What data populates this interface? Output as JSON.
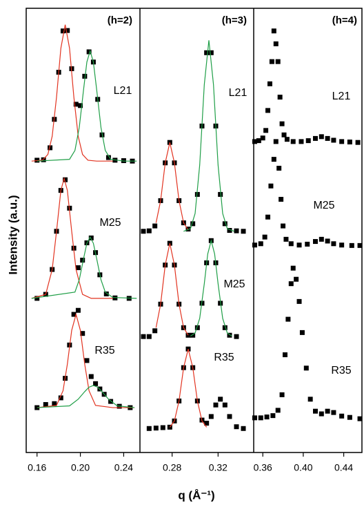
{
  "chart_data": [
    {
      "type": "scatter",
      "title": "(h=2)",
      "ylabel": "Intensity (a.u.)",
      "xlim": [
        0.15,
        0.255
      ],
      "xticks": [
        0.16,
        {
          "value": 0.2,
          "label": "0.20"
        },
        0.24
      ],
      "ylim": [
        0,
        100
      ],
      "series": [
        {
          "name": "L21",
          "style": "square",
          "color": "#000000",
          "x": [
            0.16,
            0.166,
            0.172,
            0.176,
            0.18,
            0.184,
            0.188,
            0.192,
            0.196,
            0.2,
            0.204,
            0.208,
            0.212,
            0.216,
            0.22,
            0.226,
            0.232,
            0.24,
            0.248
          ],
          "values": [
            65.8,
            65.9,
            68.6,
            75,
            85.6,
            94.9,
            95,
            86.4,
            78.4,
            78.1,
            84.7,
            90.2,
            87.9,
            79.5,
            71.5,
            66.4,
            65.8,
            65.7,
            65.6
          ]
        },
        {
          "style": "line",
          "color": "#e2321f",
          "x": [
            0.155,
            0.165,
            0.17,
            0.174,
            0.178,
            0.182,
            0.186,
            0.19,
            0.194,
            0.198,
            0.202,
            0.207,
            0.215,
            0.23
          ],
          "values": [
            65.6,
            65.8,
            67.1,
            71.2,
            80,
            91,
            96.3,
            91,
            80,
            71.2,
            67.1,
            65.8,
            65.6,
            65.6
          ]
        },
        {
          "style": "line",
          "color": "#1e9e46",
          "x": [
            0.16,
            0.19,
            0.195,
            0.199,
            0.203,
            0.206,
            0.209,
            0.212,
            0.215,
            0.219,
            0.223,
            0.228,
            0.24,
            0.252
          ],
          "values": [
            65.6,
            66,
            68,
            73.2,
            81.8,
            87.9,
            90.4,
            87.9,
            81.8,
            73.2,
            68,
            66,
            65.6,
            65.6
          ]
        },
        {
          "name": "M25",
          "style": "square",
          "color": "#000000",
          "x": [
            0.16,
            0.168,
            0.174,
            0.178,
            0.182,
            0.186,
            0.19,
            0.194,
            0.198,
            0.202,
            0.206,
            0.21,
            0.214,
            0.218,
            0.224,
            0.232,
            0.245
          ],
          "values": [
            34.7,
            35.6,
            41.2,
            49.8,
            59,
            61.4,
            55,
            46,
            41.6,
            43.3,
            47.2,
            48.3,
            45,
            40,
            35.7,
            34.8,
            34.7
          ]
        },
        {
          "style": "line",
          "color": "#e2321f",
          "x": [
            0.155,
            0.168,
            0.174,
            0.178,
            0.182,
            0.185,
            0.188,
            0.192,
            0.196,
            0.202,
            0.21,
            0.23
          ],
          "values": [
            34.7,
            35.6,
            41.2,
            49.8,
            59,
            61.7,
            59,
            49.8,
            41.2,
            35.6,
            34.7,
            34.7
          ]
        },
        {
          "style": "line",
          "color": "#1e9e46",
          "x": [
            0.155,
            0.195,
            0.199,
            0.203,
            0.206,
            0.209,
            0.212,
            0.215,
            0.219,
            0.223,
            0.23,
            0.252
          ],
          "values": [
            34.7,
            36.1,
            38.9,
            43.7,
            47.1,
            48.5,
            47.1,
            43.7,
            38.9,
            36.1,
            34.9,
            34.7
          ]
        },
        {
          "name": "R35",
          "style": "square",
          "color": "#000000",
          "x": [
            0.16,
            0.168,
            0.176,
            0.182,
            0.186,
            0.19,
            0.194,
            0.198,
            0.202,
            0.206,
            0.21,
            0.214,
            0.218,
            0.222,
            0.228,
            0.236,
            0.246
          ],
          "values": [
            10.1,
            10.8,
            11,
            12.3,
            16.7,
            24.2,
            31.1,
            32,
            26.8,
            20.7,
            17.1,
            15.5,
            14.3,
            13.1,
            11.5,
            10.4,
            10.1
          ]
        },
        {
          "style": "line",
          "color": "#e2321f",
          "x": [
            0.16,
            0.178,
            0.184,
            0.188,
            0.192,
            0.196,
            0.2,
            0.204,
            0.208,
            0.214,
            0.23,
            0.25
          ],
          "values": [
            10.1,
            10.6,
            13.9,
            19.9,
            27.5,
            31.1,
            27.5,
            19.9,
            13.9,
            10.6,
            10.1,
            10.1
          ]
        },
        {
          "style": "line",
          "color": "#1e9e46",
          "x": [
            0.16,
            0.19,
            0.198,
            0.204,
            0.208,
            0.212,
            0.216,
            0.22,
            0.226,
            0.234,
            0.25
          ],
          "values": [
            10.1,
            10.5,
            12,
            13.7,
            14.7,
            15.1,
            14.7,
            13.7,
            12,
            10.5,
            10.1
          ]
        }
      ]
    },
    {
      "type": "scatter",
      "title": "(h=3)",
      "xlabel": "q (Å⁻¹)",
      "xlim": [
        0.252,
        0.351
      ],
      "xticks": [
        0.28,
        0.32
      ],
      "ylim": [
        0,
        100
      ],
      "series": [
        {
          "name": "L21",
          "style": "square",
          "color": "#000000",
          "x": [
            0.255,
            0.26,
            0.265,
            0.27,
            0.274,
            0.278,
            0.282,
            0.286,
            0.29,
            0.294,
            0.298,
            0.302,
            0.306,
            0.31,
            0.314,
            0.318,
            0.322,
            0.326,
            0.33,
            0.336,
            0.342
          ],
          "values": [
            49.8,
            49.9,
            51,
            56.7,
            65.2,
            69.8,
            65.2,
            56.7,
            51.7,
            50.3,
            51.5,
            58.1,
            73.5,
            90,
            90,
            73.5,
            58.1,
            51.5,
            50,
            49.9,
            49.8
          ]
        },
        {
          "style": "line",
          "color": "#e2321f",
          "x": [
            0.266,
            0.27,
            0.274,
            0.278,
            0.282,
            0.286,
            0.29,
            0.294
          ],
          "values": [
            51.7,
            56.7,
            65.2,
            69.8,
            65.2,
            56.7,
            51.7,
            50.1
          ]
        },
        {
          "style": "line",
          "color": "#1e9e46",
          "x": [
            0.29,
            0.296,
            0.3,
            0.304,
            0.308,
            0.312,
            0.316,
            0.32,
            0.324,
            0.328,
            0.334
          ],
          "values": [
            49.8,
            50.4,
            53.8,
            64.7,
            82.8,
            92.8,
            82.8,
            64.7,
            53.8,
            50.4,
            49.8
          ]
        },
        {
          "name": "M25",
          "style": "square",
          "color": "#000000",
          "x": [
            0.255,
            0.26,
            0.265,
            0.27,
            0.274,
            0.278,
            0.282,
            0.286,
            0.29,
            0.294,
            0.298,
            0.302,
            0.306,
            0.31,
            0.314,
            0.318,
            0.322,
            0.326,
            0.33,
            0.336
          ],
          "values": [
            26.1,
            26.1,
            27.4,
            33.4,
            42.2,
            47.1,
            42.2,
            33.4,
            28.1,
            26.4,
            26.4,
            28.1,
            33.6,
            42.7,
            47.7,
            42.7,
            33.6,
            28.1,
            26.4,
            26.1
          ]
        },
        {
          "style": "line",
          "color": "#e2321f",
          "x": [
            0.266,
            0.27,
            0.274,
            0.278,
            0.282,
            0.286,
            0.29,
            0.294
          ],
          "values": [
            28.1,
            33.4,
            42.2,
            47.1,
            42.2,
            33.4,
            28.1,
            26.4
          ]
        },
        {
          "style": "line",
          "color": "#1e9e46",
          "x": [
            0.296,
            0.3,
            0.304,
            0.308,
            0.311,
            0.314,
            0.317,
            0.32,
            0.324,
            0.328,
            0.332
          ],
          "values": [
            26.2,
            26.9,
            30.2,
            38,
            44.7,
            47.7,
            44.7,
            38,
            30.2,
            26.9,
            26.2
          ]
        },
        {
          "name": "R35",
          "style": "square",
          "color": "#000000",
          "x": [
            0.26,
            0.266,
            0.272,
            0.278,
            0.282,
            0.286,
            0.29,
            0.294,
            0.298,
            0.302,
            0.306,
            0.31,
            0.314,
            0.318,
            0.322,
            0.326,
            0.33,
            0.336,
            0.342
          ],
          "values": [
            5.4,
            5.5,
            5.6,
            5.7,
            7.1,
            11.6,
            19.1,
            23.3,
            19.1,
            11.6,
            7.3,
            6.6,
            8.1,
            10.7,
            12,
            10.7,
            8.1,
            5.8,
            5.4
          ]
        },
        {
          "style": "line",
          "color": "#e2321f",
          "x": [
            0.278,
            0.282,
            0.286,
            0.29,
            0.294,
            0.298,
            0.302,
            0.306,
            0.31
          ],
          "values": [
            5.7,
            7.1,
            11.6,
            19.1,
            23.3,
            19.1,
            11.6,
            7.1,
            5.7
          ]
        }
      ]
    },
    {
      "type": "scatter",
      "title": "(h=4)",
      "xlim": [
        0.351,
        0.458
      ],
      "xticks": [
        0.36,
        {
          "value": 0.4,
          "label": "0.40"
        },
        0.44
      ],
      "ylim": [
        0,
        100
      ],
      "series": [
        {
          "name": "L21",
          "style": "square",
          "color": "#000000",
          "x": [
            0.352,
            0.356,
            0.36,
            0.363,
            0.365,
            0.367,
            0.369,
            0.371,
            0.373,
            0.375,
            0.377,
            0.379,
            0.381,
            0.384,
            0.39,
            0.398,
            0.405,
            0.412,
            0.418,
            0.424,
            0.43,
            0.438,
            0.446,
            0.454
          ],
          "values": [
            70,
            70.2,
            70.8,
            72.5,
            77,
            83,
            88,
            94.9,
            92,
            88,
            80,
            74,
            71.5,
            70.5,
            70,
            70,
            70.2,
            70.7,
            71.1,
            70.7,
            70.3,
            70,
            69.9,
            69.8
          ]
        },
        {
          "name": "M25",
          "style": "square",
          "color": "#000000",
          "x": [
            0.352,
            0.358,
            0.362,
            0.365,
            0.368,
            0.371,
            0.373,
            0.376,
            0.378,
            0.38,
            0.383,
            0.388,
            0.396,
            0.404,
            0.412,
            0.418,
            0.424,
            0.43,
            0.438,
            0.448,
            0.456
          ],
          "values": [
            46.7,
            47,
            48.5,
            53,
            60,
            66,
            70,
            64,
            57,
            51,
            48,
            47,
            46.7,
            46.9,
            47.5,
            48,
            47.6,
            47,
            46.7,
            46.6,
            46.6
          ]
        },
        {
          "name": "R35",
          "style": "square",
          "color": "#000000",
          "x": [
            0.352,
            0.358,
            0.364,
            0.37,
            0.375,
            0.379,
            0.382,
            0.385,
            0.388,
            0.39,
            0.393,
            0.396,
            0.399,
            0.403,
            0.407,
            0.412,
            0.418,
            0.424,
            0.43,
            0.438,
            0.446,
            0.456
          ],
          "values": [
            7.8,
            7.8,
            8,
            8.3,
            9.5,
            13,
            22,
            30,
            38,
            41.5,
            39,
            34,
            27,
            19,
            12,
            9.3,
            8.7,
            9.3,
            9,
            8.2,
            7.9,
            7.6
          ]
        }
      ]
    }
  ]
}
